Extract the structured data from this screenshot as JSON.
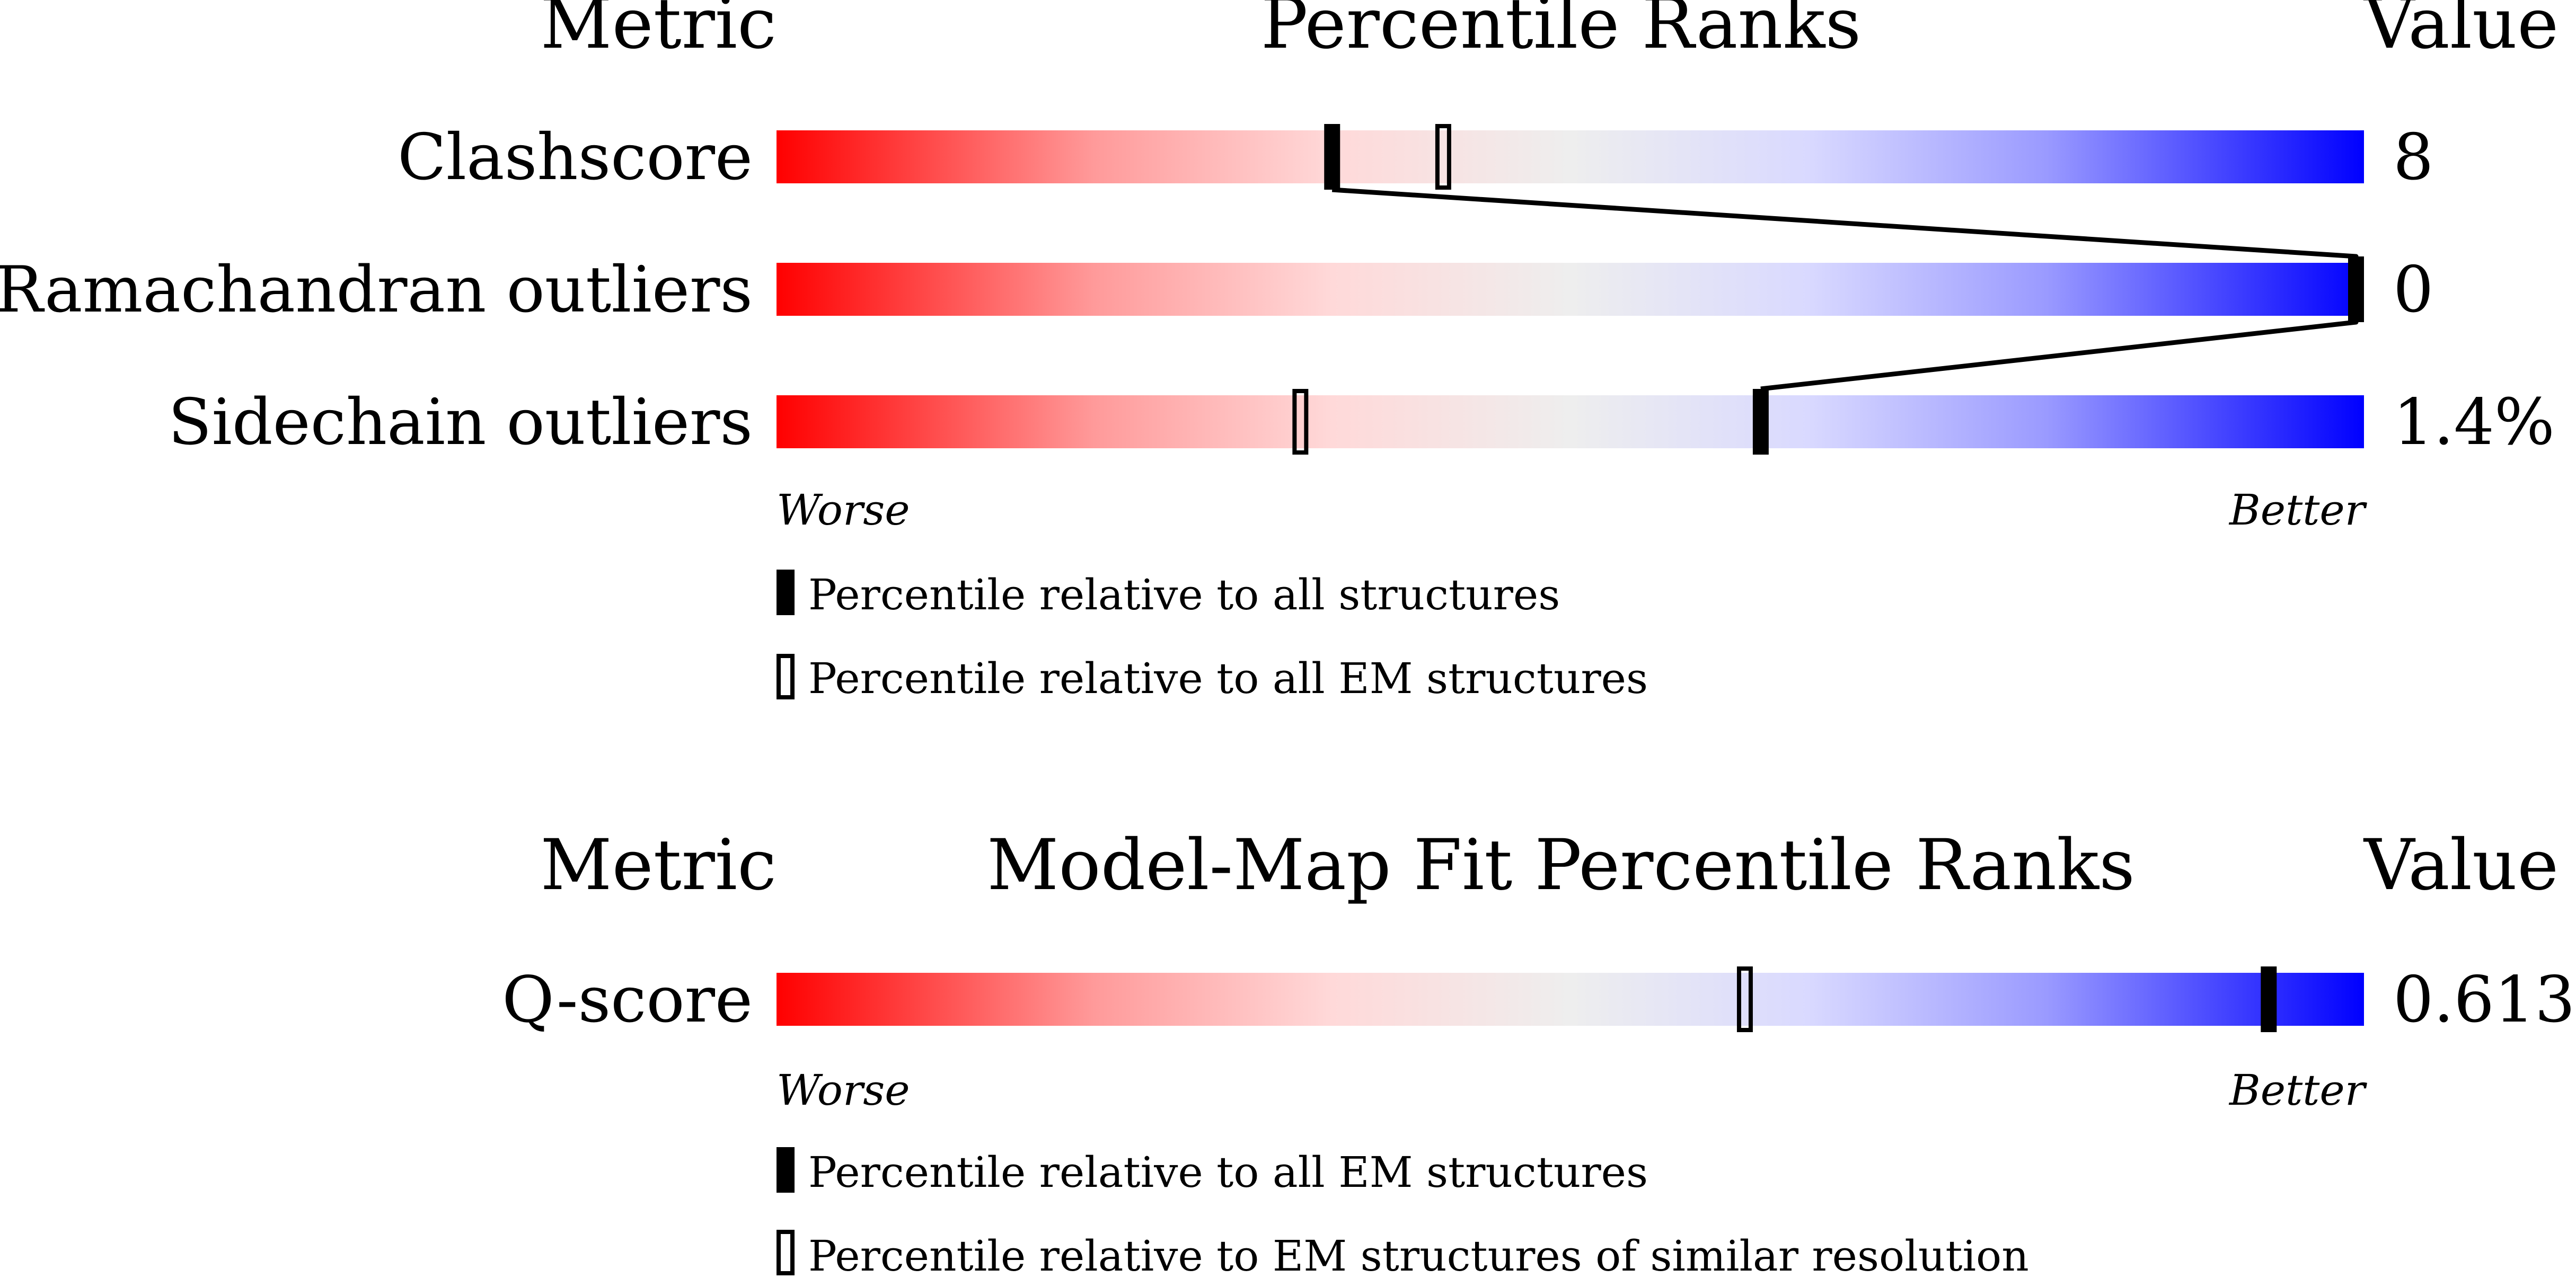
{
  "colors": {
    "worse": "#ff0000",
    "middle": "#eeeeee",
    "better": "#0000ff",
    "marker": "#000000"
  },
  "chart_data": [
    {
      "type": "percentile-bars",
      "headers": {
        "metric": "Metric",
        "title": "Percentile Ranks",
        "value": "Value"
      },
      "xlim": [
        0,
        100
      ],
      "worse_label": "Worse",
      "better_label": "Better",
      "rows": [
        {
          "metric": "Clashscore",
          "value": "8",
          "all": 35,
          "em": 42
        },
        {
          "metric": "Ramachandran outliers",
          "value": "0",
          "all": 100,
          "em": 100
        },
        {
          "metric": "Sidechain outliers",
          "value": "1.4%",
          "all": 62,
          "em": 33
        }
      ],
      "legend": {
        "filled": "Percentile relative to all structures",
        "open": "Percentile relative to all EM structures"
      }
    },
    {
      "type": "percentile-bars",
      "headers": {
        "metric": "Metric",
        "title": "Model-Map Fit Percentile Ranks",
        "value": "Value"
      },
      "xlim": [
        0,
        100
      ],
      "worse_label": "Worse",
      "better_label": "Better",
      "rows": [
        {
          "metric": "Q-score",
          "value": "0.613",
          "all": 94,
          "em": 61
        }
      ],
      "legend": {
        "filled": "Percentile relative to all EM structures",
        "open": "Percentile relative to EM structures of similar resolution"
      }
    }
  ]
}
